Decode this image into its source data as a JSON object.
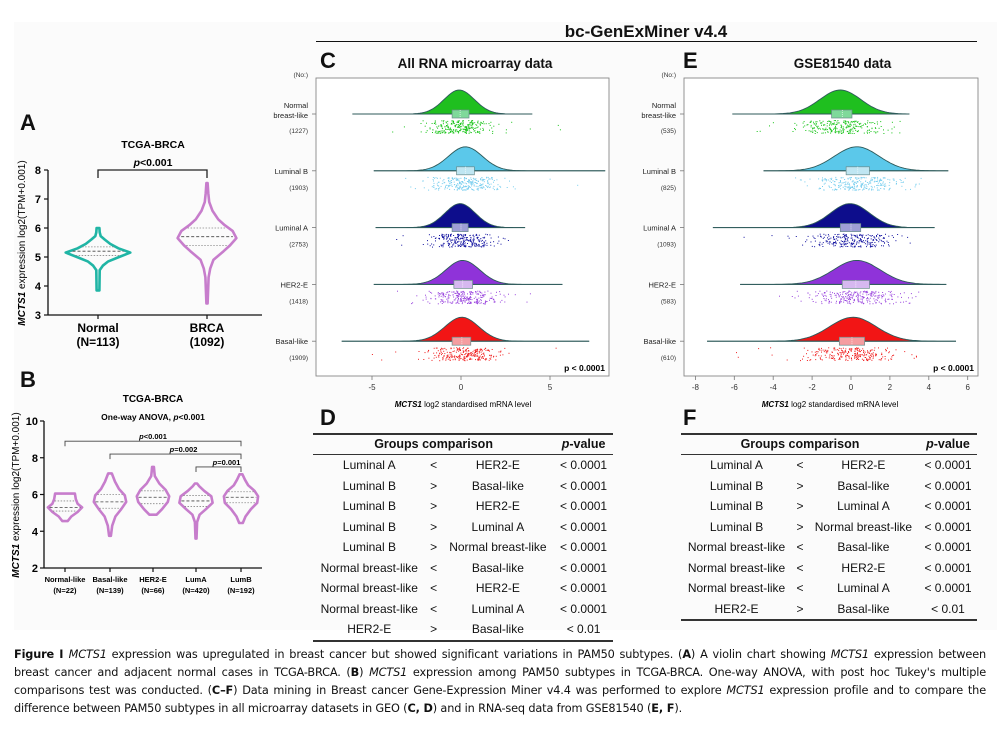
{
  "figure": {
    "tool_title": "bc-GenExMiner v4.4",
    "panels": {
      "A": "A",
      "B": "B",
      "C": "C",
      "D": "D",
      "E": "E",
      "F": "F"
    }
  },
  "caption": {
    "label": "Figure 1",
    "segments": [
      {
        "t": "Figure I ",
        "s": "b"
      },
      {
        "t": "MCTS1",
        "s": "i"
      },
      {
        "t": " expression was upregulated in breast cancer but showed significant variations in PAM50 subtypes. (",
        "s": ""
      },
      {
        "t": "A",
        "s": "b"
      },
      {
        "t": ") A violin chart showing ",
        "s": ""
      },
      {
        "t": "MCTS1",
        "s": "i"
      },
      {
        "t": " expression between breast cancer and adjacent normal cases in TCGA-BRCA. (",
        "s": ""
      },
      {
        "t": "B",
        "s": "b"
      },
      {
        "t": ") ",
        "s": ""
      },
      {
        "t": "MCTS1",
        "s": "i"
      },
      {
        "t": " expression among PAM50 subtypes in TCGA-BRCA. One-way ANOVA, with post hoc Tukey's multiple comparisons test was conducted. (",
        "s": ""
      },
      {
        "t": "C–F",
        "s": "b"
      },
      {
        "t": ") Data mining in Breast cancer Gene-Expression Miner v4.4 was performed to explore ",
        "s": ""
      },
      {
        "t": "MCTS1",
        "s": "i"
      },
      {
        "t": " expression profile and to compare the difference between PAM50 subtypes in all microarray datasets in GEO (",
        "s": ""
      },
      {
        "t": "C, D",
        "s": "b"
      },
      {
        "t": ") and in RNA-seq data from GSE81540 (",
        "s": ""
      },
      {
        "t": "E, F",
        "s": "b"
      },
      {
        "t": ").",
        "s": ""
      }
    ]
  },
  "chart_data": [
    {
      "id": "A",
      "type": "violin",
      "title": "TCGA-BRCA",
      "ylabel_italic": "MCTS1",
      "ylabel_rest": " expression log2(TPM+0.001)",
      "ylim": [
        3,
        8
      ],
      "yticks": [
        3,
        4,
        5,
        6,
        7,
        8
      ],
      "categories": [
        {
          "label": "Normal",
          "n": "(N=113)",
          "color": "#20b5a5",
          "min": 3.85,
          "max": 6.0,
          "q1": 5.05,
          "median": 5.2,
          "q3": 5.35,
          "shape": [
            [
              3.85,
              0.04
            ],
            [
              4.55,
              0.05
            ],
            [
              4.7,
              0.14
            ],
            [
              4.85,
              0.3
            ],
            [
              5.0,
              0.62
            ],
            [
              5.15,
              0.95
            ],
            [
              5.3,
              0.6
            ],
            [
              5.45,
              0.36
            ],
            [
              5.6,
              0.2
            ],
            [
              5.72,
              0.08
            ],
            [
              5.85,
              0.05
            ],
            [
              6.0,
              0.04
            ]
          ]
        },
        {
          "label": "BRCA",
          "n": "(1092)",
          "color": "#c77dcc",
          "min": 3.4,
          "max": 7.55,
          "q1": 5.4,
          "median": 5.7,
          "q3": 6.0,
          "shape": [
            [
              3.4,
              0.02
            ],
            [
              4.3,
              0.05
            ],
            [
              4.6,
              0.1
            ],
            [
              4.9,
              0.2
            ],
            [
              5.2,
              0.52
            ],
            [
              5.4,
              0.72
            ],
            [
              5.65,
              0.92
            ],
            [
              5.9,
              0.8
            ],
            [
              6.1,
              0.55
            ],
            [
              6.3,
              0.35
            ],
            [
              6.6,
              0.17
            ],
            [
              6.9,
              0.07
            ],
            [
              7.2,
              0.04
            ],
            [
              7.55,
              0.02
            ]
          ]
        }
      ],
      "annotation": {
        "p": "p",
        "rest": "<0.001"
      }
    },
    {
      "id": "B",
      "type": "violin",
      "title": "TCGA-BRCA",
      "subtitle_pre": "One-way ANOVA, ",
      "subtitle_p": "p",
      "subtitle_post": "<0.001",
      "ylabel_italic": "MCTS1",
      "ylabel_rest": " expression log2(TPM+0.001)",
      "ylim": [
        2,
        10
      ],
      "yticks": [
        2,
        4,
        6,
        8,
        10
      ],
      "color": "#c77dcc",
      "categories": [
        {
          "label": "Normal-like",
          "n": "(N=22)",
          "min": 4.55,
          "max": 6.05,
          "q1": 5.1,
          "median": 5.3,
          "q3": 5.65,
          "shape": [
            [
              4.55,
              0.15
            ],
            [
              4.8,
              0.35
            ],
            [
              5.05,
              0.7
            ],
            [
              5.3,
              0.95
            ],
            [
              5.5,
              0.7
            ],
            [
              5.75,
              0.6
            ],
            [
              6.05,
              0.55
            ]
          ]
        },
        {
          "label": "Basal-like",
          "n": "(N=139)",
          "min": 3.75,
          "max": 7.15,
          "q1": 5.25,
          "median": 5.6,
          "q3": 6.0,
          "shape": [
            [
              3.75,
              0.05
            ],
            [
              4.3,
              0.12
            ],
            [
              4.8,
              0.3
            ],
            [
              5.2,
              0.62
            ],
            [
              5.6,
              0.9
            ],
            [
              5.95,
              0.82
            ],
            [
              6.3,
              0.5
            ],
            [
              6.7,
              0.28
            ],
            [
              7.15,
              0.1
            ]
          ]
        },
        {
          "label": "HER2-E",
          "n": "(N=66)",
          "min": 4.9,
          "max": 7.5,
          "q1": 5.5,
          "median": 5.85,
          "q3": 6.2,
          "shape": [
            [
              4.9,
              0.2
            ],
            [
              5.2,
              0.5
            ],
            [
              5.6,
              0.82
            ],
            [
              5.9,
              0.9
            ],
            [
              6.25,
              0.7
            ],
            [
              6.6,
              0.35
            ],
            [
              7.0,
              0.1
            ],
            [
              7.2,
              0.08
            ],
            [
              7.5,
              0.05
            ]
          ]
        },
        {
          "label": "LumA",
          "n": "(N=420)",
          "min": 3.6,
          "max": 6.6,
          "q1": 5.35,
          "median": 5.65,
          "q3": 5.95,
          "shape": [
            [
              3.6,
              0.03
            ],
            [
              4.5,
              0.06
            ],
            [
              4.9,
              0.2
            ],
            [
              5.2,
              0.55
            ],
            [
              5.55,
              0.92
            ],
            [
              5.9,
              0.85
            ],
            [
              6.2,
              0.45
            ],
            [
              6.45,
              0.18
            ],
            [
              6.6,
              0.06
            ]
          ]
        },
        {
          "label": "LumB",
          "n": "(N=192)",
          "min": 4.45,
          "max": 7.1,
          "q1": 5.55,
          "median": 5.85,
          "q3": 6.15,
          "shape": [
            [
              4.45,
              0.1
            ],
            [
              4.8,
              0.25
            ],
            [
              5.2,
              0.55
            ],
            [
              5.55,
              0.9
            ],
            [
              5.9,
              0.95
            ],
            [
              6.2,
              0.75
            ],
            [
              6.5,
              0.4
            ],
            [
              6.8,
              0.22
            ],
            [
              7.1,
              0.08
            ]
          ]
        }
      ],
      "brackets": [
        {
          "from": 0,
          "to": 4,
          "level": 8.9,
          "p": "p",
          "rest": "<0.001"
        },
        {
          "from": 1,
          "to": 4,
          "level": 8.2,
          "p": "p",
          "rest": "=0.002"
        },
        {
          "from": 3,
          "to": 4,
          "level": 7.5,
          "p": "p",
          "rest": "=0.001"
        }
      ]
    },
    {
      "id": "C",
      "type": "raincloud",
      "title": "All RNA microarray data",
      "xlabel_italic": "MCTS1",
      "xlabel_rest": " log2 standardised mRNA level",
      "xlim": [
        -7.9,
        8.6
      ],
      "xticks": [
        -5,
        0,
        5
      ],
      "count_header": "(No:)",
      "pvalue": "p < 0.0001",
      "groups": [
        {
          "label": [
            "Normal",
            "breast-like"
          ],
          "n": "(1227)",
          "color": "#1fbf1f",
          "box": "#7fd99a",
          "dot": "#17c417",
          "center": -0.1,
          "sd": 0.85,
          "whisker": [
            -6.1,
            4.0
          ],
          "q1": -0.5,
          "q3": 0.45,
          "median": -0.05,
          "spread": [
            -5.4,
            5.9
          ]
        },
        {
          "label": [
            "Luminal B"
          ],
          "n": "(1903)",
          "color": "#5bc8ea",
          "box": "#bfe6f2",
          "dot": "#75cdee",
          "center": 0.25,
          "sd": 0.95,
          "whisker": [
            -4.9,
            8.1
          ],
          "q1": -0.25,
          "q3": 0.75,
          "median": 0.25,
          "spread": [
            -4.5,
            7.5
          ]
        },
        {
          "label": [
            "Luminal A"
          ],
          "n": "(2753)",
          "color": "#0d0d8c",
          "box": "#9f9fd6",
          "dot": "#1212a0",
          "center": -0.05,
          "sd": 0.85,
          "whisker": [
            -4.8,
            3.6
          ],
          "q1": -0.5,
          "q3": 0.4,
          "median": 0.0,
          "spread": [
            -4.0,
            3.0
          ]
        },
        {
          "label": [
            "HER2-E"
          ],
          "n": "(1418)",
          "color": "#8f33d9",
          "box": "#d6b8f0",
          "dot": "#9a45de",
          "center": 0.1,
          "sd": 0.95,
          "whisker": [
            -4.9,
            5.7
          ],
          "q1": -0.4,
          "q3": 0.65,
          "median": 0.1,
          "spread": [
            -4.2,
            4.7
          ]
        },
        {
          "label": [
            "Basal-like"
          ],
          "n": "(1909)",
          "color": "#f21515",
          "box": "#f59da0",
          "dot": "#f02020",
          "center": 0.05,
          "sd": 0.95,
          "whisker": [
            -6.7,
            7.2
          ],
          "q1": -0.5,
          "q3": 0.55,
          "median": 0.05,
          "spread": [
            -6.0,
            6.3
          ]
        }
      ]
    },
    {
      "id": "E",
      "type": "raincloud",
      "title": "GSE81540 data",
      "xlabel_italic": "MCTS1",
      "xlabel_rest": " log2 standardised mRNA level",
      "xlim": [
        -8.6,
        6.4
      ],
      "xticks": [
        -8,
        -6,
        -4,
        -2,
        0,
        2,
        4,
        6
      ],
      "count_header": "(No:)",
      "pvalue": "p < 0.0001",
      "groups": [
        {
          "label": [
            "Normal",
            "breast-like"
          ],
          "n": "(535)",
          "color": "#1fbf1f",
          "box": "#7fd99a",
          "dot": "#17c417",
          "center": -0.55,
          "sd": 1.05,
          "whisker": [
            -6.1,
            3.0
          ],
          "q1": -1.0,
          "q3": 0.05,
          "median": -0.45,
          "spread": [
            -4.9,
            2.5
          ]
        },
        {
          "label": [
            "Luminal B"
          ],
          "n": "(825)",
          "color": "#5bc8ea",
          "box": "#bfe6f2",
          "dot": "#75cdee",
          "center": 0.3,
          "sd": 1.15,
          "whisker": [
            -4.5,
            5.0
          ],
          "q1": -0.25,
          "q3": 0.95,
          "median": 0.35,
          "spread": [
            -3.0,
            3.7
          ]
        },
        {
          "label": [
            "Luminal A"
          ],
          "n": "(1093)",
          "color": "#0d0d8c",
          "box": "#9f9fd6",
          "dot": "#1212a0",
          "center": -0.05,
          "sd": 1.0,
          "whisker": [
            -7.1,
            4.3
          ],
          "q1": -0.55,
          "q3": 0.5,
          "median": 0.0,
          "spread": [
            -6.1,
            3.3
          ]
        },
        {
          "label": [
            "HER2-E"
          ],
          "n": "(583)",
          "color": "#8f33d9",
          "box": "#d6b8f0",
          "dot": "#9a45de",
          "center": 0.3,
          "sd": 1.2,
          "whisker": [
            -5.7,
            4.9
          ],
          "q1": -0.45,
          "q3": 0.95,
          "median": 0.25,
          "spread": [
            -4.1,
            3.5
          ]
        },
        {
          "label": [
            "Basal-like"
          ],
          "n": "(610)",
          "color": "#f21515",
          "box": "#f59da0",
          "dot": "#f02020",
          "center": 0.1,
          "sd": 1.2,
          "whisker": [
            -7.4,
            5.4
          ],
          "q1": -0.6,
          "q3": 0.7,
          "median": 0.05,
          "spread": [
            -6.0,
            4.0
          ]
        }
      ]
    },
    {
      "id": "D",
      "type": "table",
      "headers": {
        "group": "Groups comparison",
        "p_italic": "p",
        "p_rest": "-value"
      },
      "rows": [
        [
          "Luminal A",
          "<",
          "HER2-E",
          "< 0.0001"
        ],
        [
          "Luminal B",
          ">",
          "Basal-like",
          "< 0.0001"
        ],
        [
          "Luminal B",
          ">",
          "HER2-E",
          "< 0.0001"
        ],
        [
          "Luminal B",
          ">",
          "Luminal A",
          "< 0.0001"
        ],
        [
          "Luminal B",
          ">",
          "Normal breast-like",
          "< 0.0001"
        ],
        [
          "Normal breast-like",
          "<",
          "Basal-like",
          "< 0.0001"
        ],
        [
          "Normal breast-like",
          "<",
          "HER2-E",
          "< 0.0001"
        ],
        [
          "Normal breast-like",
          "<",
          "Luminal A",
          "< 0.0001"
        ],
        [
          "HER2-E",
          ">",
          "Basal-like",
          "< 0.01"
        ]
      ]
    },
    {
      "id": "F",
      "type": "table",
      "headers": {
        "group": "Groups comparison",
        "p_italic": "p",
        "p_rest": "-value"
      },
      "rows": [
        [
          "Luminal A",
          "<",
          "HER2-E",
          "< 0.0001"
        ],
        [
          "Luminal B",
          ">",
          "Basal-like",
          "< 0.0001"
        ],
        [
          "Luminal B",
          ">",
          "Luminal A",
          "< 0.0001"
        ],
        [
          "Luminal B",
          ">",
          "Normal breast-like",
          "< 0.0001"
        ],
        [
          "Normal breast-like",
          "<",
          "Basal-like",
          "< 0.0001"
        ],
        [
          "Normal breast-like",
          "<",
          "HER2-E",
          "< 0.0001"
        ],
        [
          "Normal breast-like",
          "<",
          "Luminal A",
          "< 0.0001"
        ],
        [
          "HER2-E",
          ">",
          "Basal-like",
          "< 0.01"
        ]
      ]
    }
  ]
}
